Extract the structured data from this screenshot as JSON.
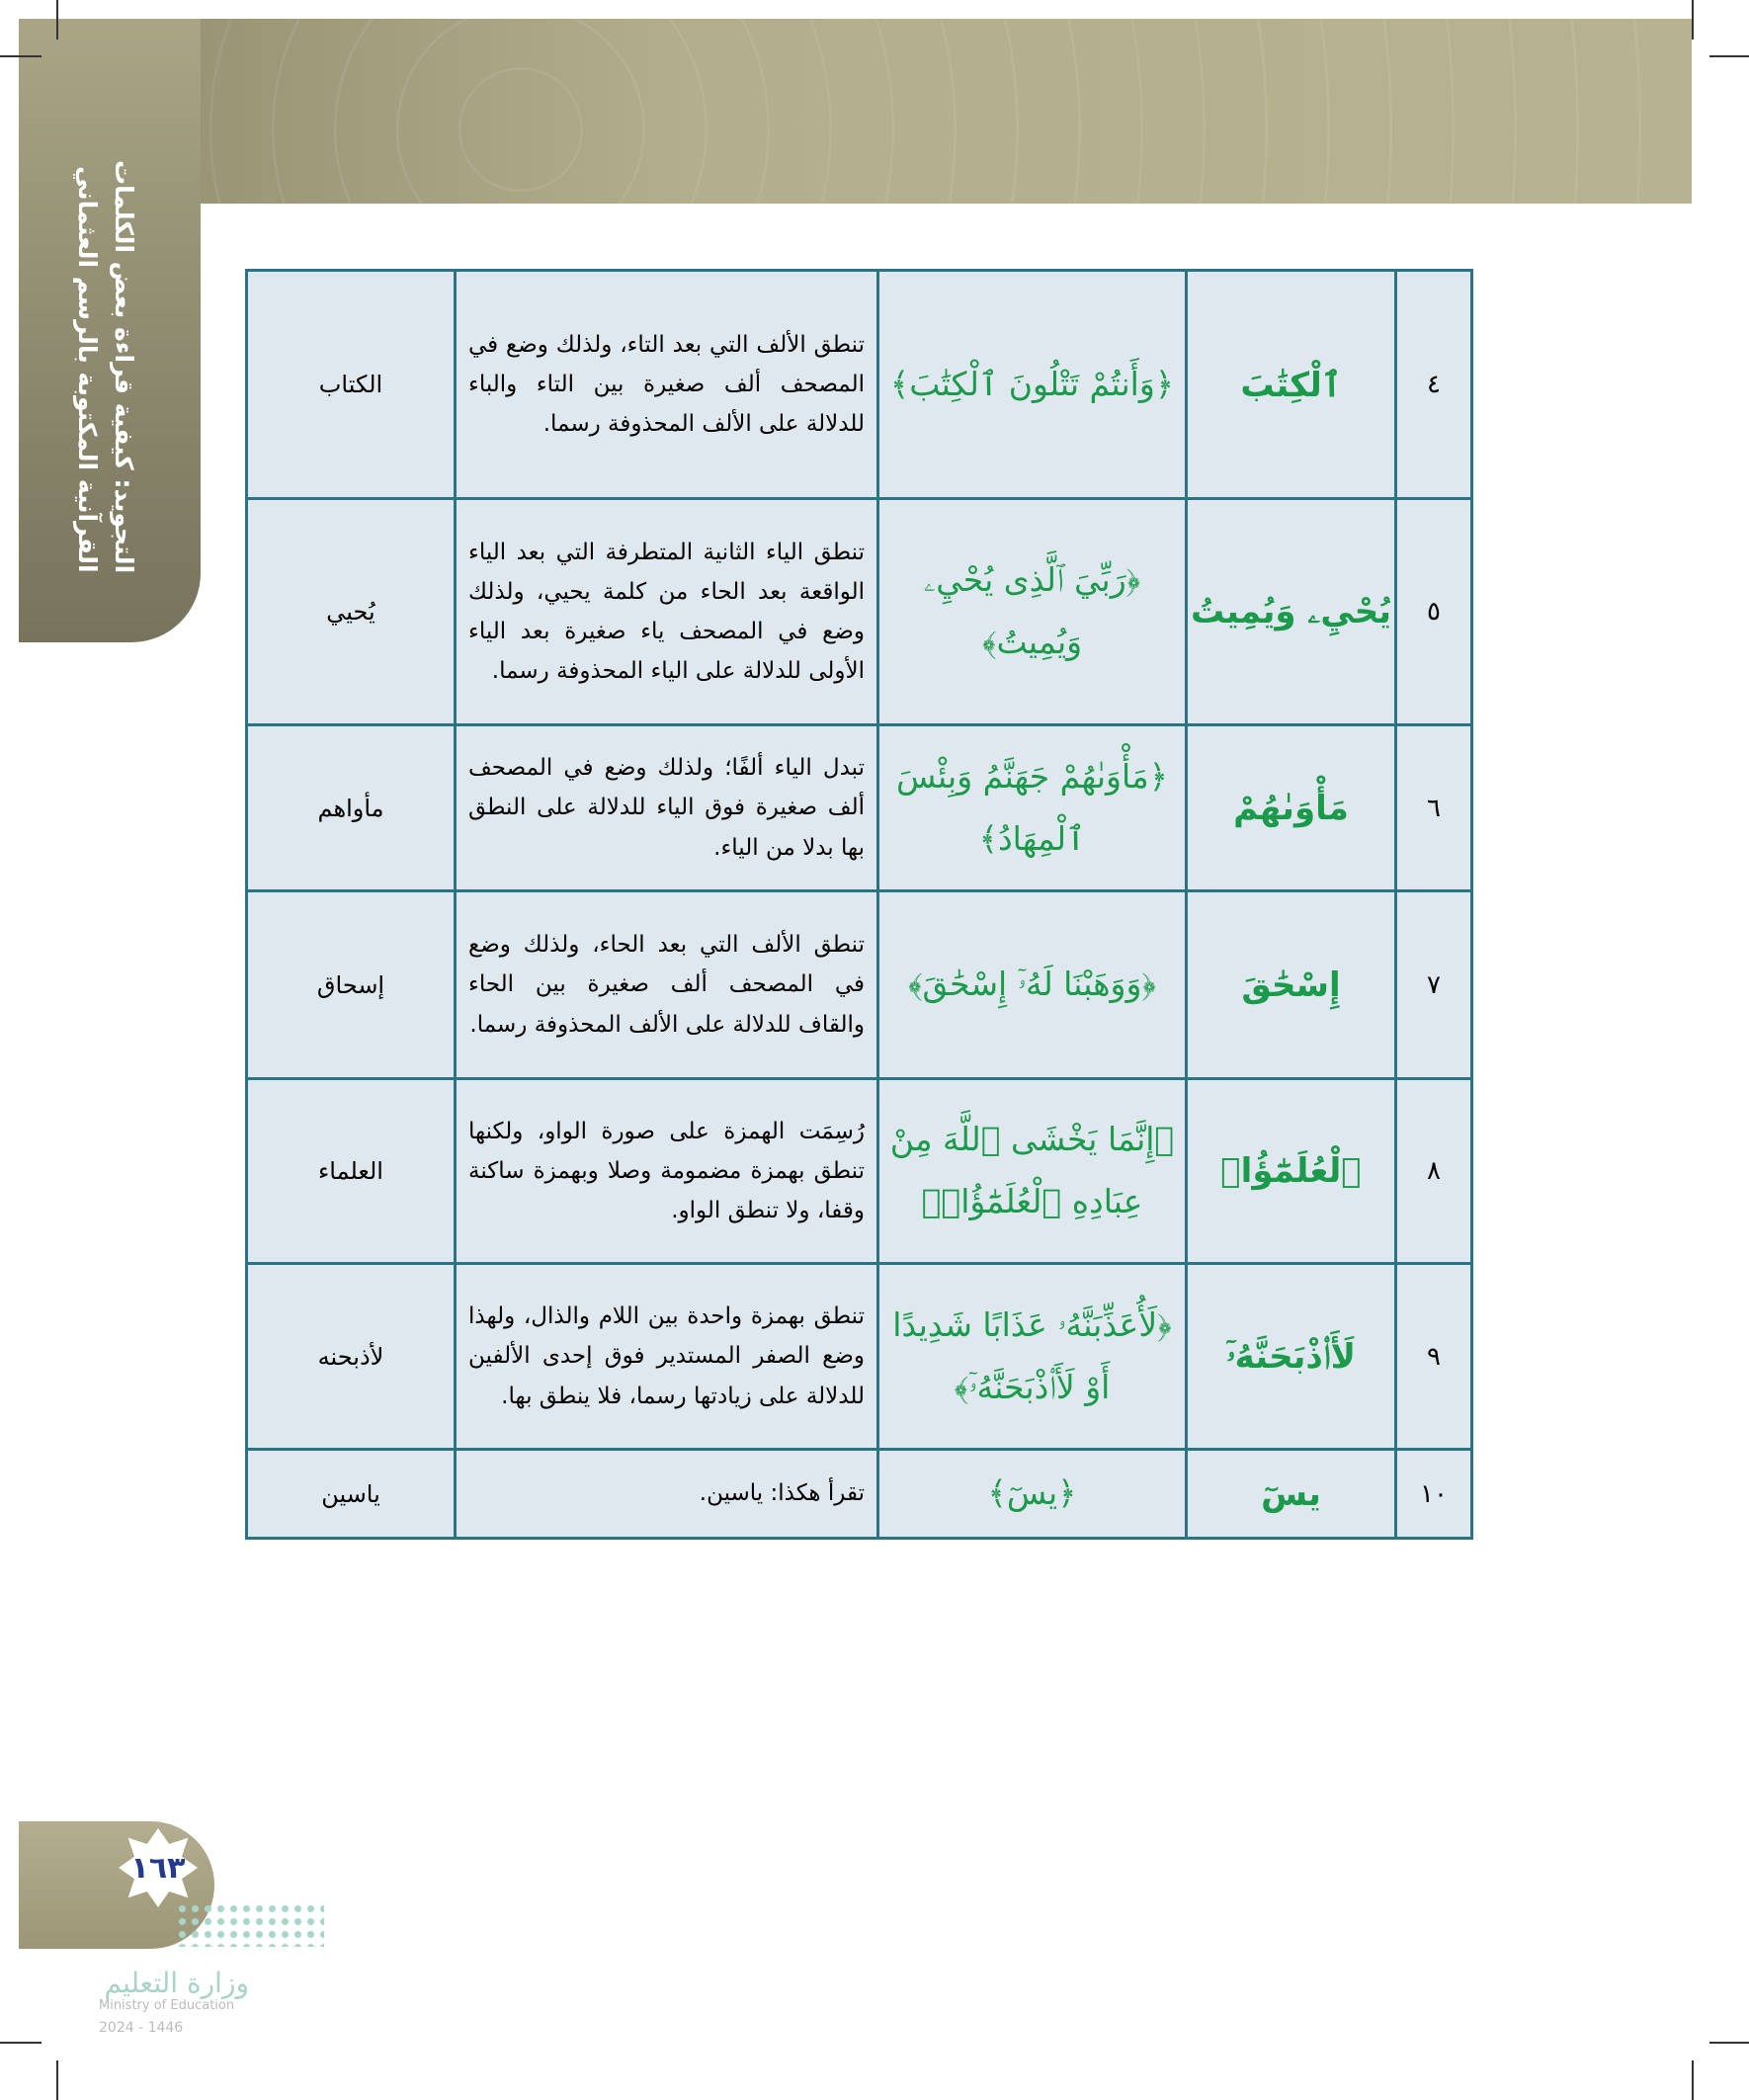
{
  "header": {
    "chapter_title_line1": "التجويد: كيفية قراءة بعض الكلمات",
    "chapter_title_line2": "القرآنية المكتوبة بالرسم العثماني"
  },
  "rows": [
    {
      "num": "٤",
      "word": "ٱلْكِتَٰبَ",
      "ayah": "﴿وَأَنتُمْ تَتْلُونَ ٱلْكِتَٰبَ﴾",
      "desc": "تنطق الألف التي بعد التاء، ولذلك وضع في المصحف ألف صغيرة بين التاء والباء للدلالة على الألف المحذوفة رسما.",
      "plain": "الكتاب"
    },
    {
      "num": "٥",
      "word": "يُحْيِۦ وَيُمِيتُ",
      "ayah": "﴿رَبِّيَ ٱلَّذِى يُحْيِۦ وَيُمِيتُ﴾",
      "desc": "تنطق الياء الثانية المتطرفة التي بعد الياء الواقعة بعد الحاء من كلمة يحيي، ولذلك وضع في المصحف ياء صغيرة بعد الياء الأولى للدلالة على الياء المحذوفة رسما.",
      "plain": "يُحيي"
    },
    {
      "num": "٦",
      "word": "مَأْوَىٰهُمْ",
      "ayah": "﴿مَأْوَىٰهُمْ جَهَنَّمُ وَبِئْسَ ٱلْمِهَادُ﴾",
      "desc": "تبدل الياء ألفًا؛ ولذلك وضع في المصحف ألف صغيرة فوق الياء للدلالة على النطق بها بدلا من الياء.",
      "plain": "مأواهم"
    },
    {
      "num": "٧",
      "word": "إِسْحَٰقَ",
      "ayah": "﴿وَوَهَبْنَا لَهُۥٓ إِسْحَٰقَ﴾",
      "desc": "تنطق الألف التي بعد الحاء، ولذلك وضع في المصحف ألف صغيرة بين الحاء والقاف للدلالة على الألف المحذوفة رسما.",
      "plain": "إسحاق"
    },
    {
      "num": "٨",
      "word": "ٱلْعُلَمَٰٓؤُا۟",
      "ayah": "﴿إِنَّمَا يَخْشَى ٱللَّهَ مِنْ عِبَادِهِ ٱلْعُلَمَٰٓؤُا۟﴾",
      "desc": "رُسِمَت الهمزة على صورة الواو، ولكنها تنطق بهمزة مضمومة وصلا وبهمزة ساكنة وقفا، ولا تنطق الواو.",
      "plain": "العلماء"
    },
    {
      "num": "٩",
      "word": "لَأَا۟ذْبَحَنَّهُۥٓ",
      "ayah": "﴿لَأُعَذِّبَنَّهُۥ عَذَابًا شَدِيدًا أَوْ لَأَا۟ذْبَحَنَّهُۥٓ﴾",
      "desc": "تنطق بهمزة واحدة بين اللام والذال، ولهذا وضع الصفر المستدير فوق إحدى الألفين للدلالة على زيادتها رسما، فلا ينطق بها.",
      "plain": "لأذبحنه"
    },
    {
      "num": "١٠",
      "word": "يسٓ",
      "ayah": "﴿يسٓ﴾",
      "desc": "تقرأ هكذا: ياسين.",
      "plain": "ياسين"
    }
  ],
  "footer": {
    "page_number": "١٦٣",
    "ministry_ar": "وزارة التعليم",
    "ministry_en": "Ministry of Education",
    "year": "2024 - 1446"
  },
  "colors": {
    "quran_green": "#1a9a4a",
    "table_border": "#2c7484",
    "cell_bg": "#dfe8ef",
    "band": "#b3ae8c",
    "page_number": "#233a8c"
  }
}
